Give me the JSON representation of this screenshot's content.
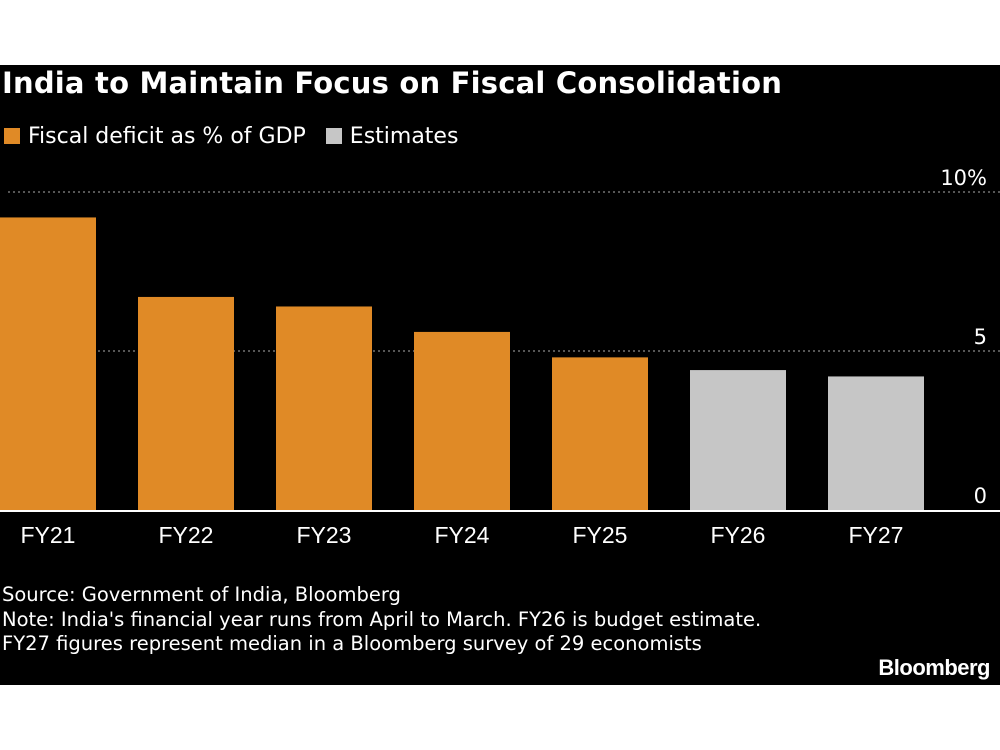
{
  "chart_data": {
    "type": "bar",
    "title": "India to Maintain Focus on Fiscal Consolidation",
    "legend": [
      {
        "label": "Fiscal deficit as % of GDP",
        "color": "#e08a26"
      },
      {
        "label": "Estimates",
        "color": "#c6c6c6"
      }
    ],
    "categories": [
      "FY21",
      "FY22",
      "FY23",
      "FY24",
      "FY25",
      "FY26",
      "FY27"
    ],
    "values": [
      9.2,
      6.7,
      6.4,
      5.6,
      4.8,
      4.4,
      4.2
    ],
    "estimate": [
      false,
      false,
      false,
      false,
      false,
      true,
      true
    ],
    "ylim": [
      0,
      10
    ],
    "yticks": [
      {
        "value": 10,
        "label": "10%"
      },
      {
        "value": 5,
        "label": "5"
      },
      {
        "value": 0,
        "label": "0"
      }
    ],
    "xlabel": "",
    "ylabel": "",
    "grid": true
  },
  "footer": {
    "source": "Source: Government of India, Bloomberg",
    "note": "Note: India's financial year runs from April to March. FY26 is budget estimate. FY27 figures represent median in a Bloomberg survey of 29 economists",
    "brand": "Bloomberg"
  },
  "colors": {
    "background": "#000000",
    "actual": "#e08a26",
    "estimate": "#c6c6c6",
    "text": "#ffffff",
    "grid": "#8a8a8a"
  }
}
